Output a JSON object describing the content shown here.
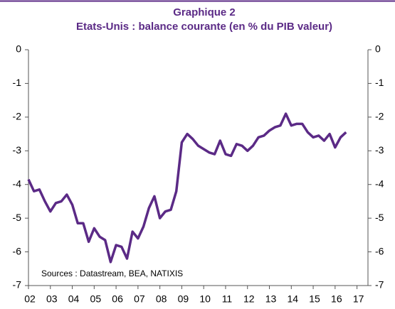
{
  "chart_data": {
    "type": "line",
    "title": "Graphique 2",
    "subtitle": "Etats-Unis : balance courante (en % du PIB valeur)",
    "annotation": "Sources : Datastream, BEA, NATIXIS",
    "x": [
      2002,
      2002.25,
      2002.5,
      2002.75,
      2003,
      2003.25,
      2003.5,
      2003.75,
      2004,
      2004.25,
      2004.5,
      2004.75,
      2005,
      2005.25,
      2005.5,
      2005.75,
      2006,
      2006.25,
      2006.5,
      2006.75,
      2007,
      2007.25,
      2007.5,
      2007.75,
      2008,
      2008.25,
      2008.5,
      2008.75,
      2009,
      2009.25,
      2009.5,
      2009.75,
      2010,
      2010.25,
      2010.5,
      2010.75,
      2011,
      2011.25,
      2011.5,
      2011.75,
      2012,
      2012.25,
      2012.5,
      2012.75,
      2013,
      2013.25,
      2013.5,
      2013.75,
      2014,
      2014.25,
      2014.5,
      2014.75,
      2015,
      2015.25,
      2015.5,
      2015.75,
      2016,
      2016.25,
      2016.5
    ],
    "series": [
      {
        "color": "#5b2a86",
        "values": [
          -3.85,
          -4.2,
          -4.15,
          -4.5,
          -4.8,
          -4.55,
          -4.5,
          -4.3,
          -4.6,
          -5.15,
          -5.15,
          -5.7,
          -5.3,
          -5.55,
          -5.65,
          -6.3,
          -5.8,
          -5.85,
          -6.2,
          -5.4,
          -5.6,
          -5.25,
          -4.7,
          -4.35,
          -5.0,
          -4.8,
          -4.75,
          -4.2,
          -2.75,
          -2.5,
          -2.65,
          -2.85,
          -2.95,
          -3.05,
          -3.1,
          -2.7,
          -3.1,
          -3.15,
          -2.8,
          -2.85,
          -3.0,
          -2.85,
          -2.6,
          -2.55,
          -2.4,
          -2.3,
          -2.25,
          -1.9,
          -2.25,
          -2.2,
          -2.2,
          -2.45,
          -2.6,
          -2.55,
          -2.7,
          -2.5,
          -2.9,
          -2.6,
          -2.45
        ]
      }
    ],
    "xlim": [
      2002,
      2017.5
    ],
    "xticks": [
      {
        "value": 2002,
        "label": "02"
      },
      {
        "value": 2003,
        "label": "03"
      },
      {
        "value": 2004,
        "label": "04"
      },
      {
        "value": 2005,
        "label": "05"
      },
      {
        "value": 2006,
        "label": "06"
      },
      {
        "value": 2007,
        "label": "07"
      },
      {
        "value": 2008,
        "label": "08"
      },
      {
        "value": 2009,
        "label": "09"
      },
      {
        "value": 2010,
        "label": "10"
      },
      {
        "value": 2011,
        "label": "11"
      },
      {
        "value": 2012,
        "label": "12"
      },
      {
        "value": 2013,
        "label": "13"
      },
      {
        "value": 2014,
        "label": "14"
      },
      {
        "value": 2015,
        "label": "15"
      },
      {
        "value": 2016,
        "label": "16"
      },
      {
        "value": 2017,
        "label": "17"
      }
    ],
    "ylim": [
      -7,
      0
    ],
    "yticks": [
      0,
      -1,
      -2,
      -3,
      -4,
      -5,
      -6,
      -7
    ]
  }
}
